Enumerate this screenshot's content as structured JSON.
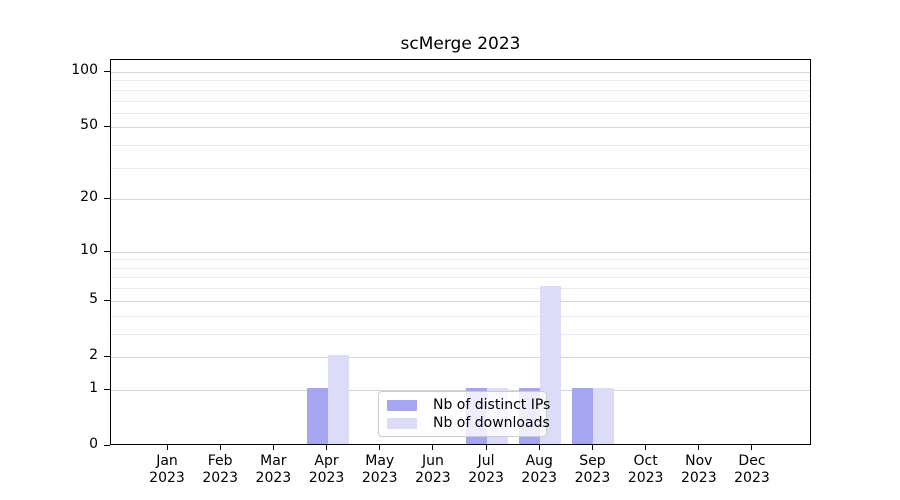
{
  "title": "scMerge 2023",
  "colors": {
    "ips": "#a5a5f0",
    "downloads": "#dcdcf8",
    "grid_major": "#d5d5d5",
    "grid_minor": "#ececec",
    "spine": "#000000",
    "legend_border": "#cccccc"
  },
  "chart_data": {
    "type": "bar",
    "title": "scMerge 2023",
    "categories": [
      "Jan 2023",
      "Feb 2023",
      "Mar 2023",
      "Apr 2023",
      "May 2023",
      "Jun 2023",
      "Jul 2023",
      "Aug 2023",
      "Sep 2023",
      "Oct 2023",
      "Nov 2023",
      "Dec 2023"
    ],
    "series": [
      {
        "name": "Nb of distinct IPs",
        "color_key": "ips",
        "values": [
          0,
          0,
          0,
          1,
          0,
          0,
          1,
          1,
          1,
          0,
          0,
          0
        ]
      },
      {
        "name": "Nb of downloads",
        "color_key": "downloads",
        "values": [
          0,
          0,
          0,
          2,
          0,
          0,
          1,
          6,
          1,
          0,
          0,
          0
        ]
      }
    ],
    "xlabel": "",
    "ylabel": "",
    "y_axis": {
      "scale": "log1p",
      "ticks": [
        0,
        1,
        2,
        5,
        10,
        20,
        50,
        100
      ],
      "minor_gridlines": [
        3,
        4,
        6,
        7,
        8,
        9,
        30,
        40,
        60,
        70,
        80,
        90
      ],
      "range": [
        0,
        117
      ]
    },
    "grid": true,
    "legend_position": "lower center"
  }
}
